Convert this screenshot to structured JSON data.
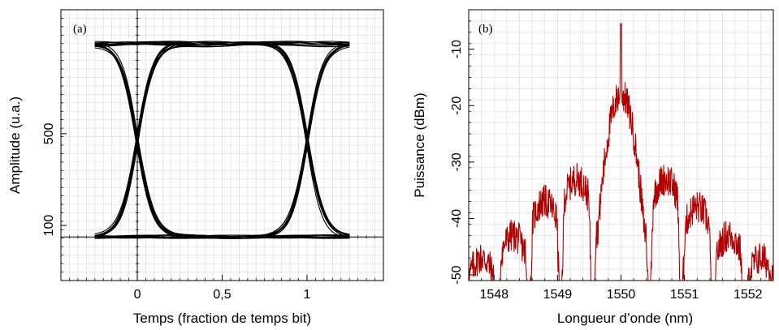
{
  "chart_data": [
    {
      "type": "line",
      "panel_label": "(a)",
      "xlabel": "Temps (fraction de temps bit)",
      "ylabel": "Amplitude (u.a.)",
      "x_ticks": [
        {
          "value": 0,
          "label": "0"
        },
        {
          "value": 0.5,
          "label": "0,5"
        },
        {
          "value": 1,
          "label": "1"
        }
      ],
      "y_ticks": [
        {
          "value": 100,
          "label": "100"
        },
        {
          "value": 500,
          "label": "500"
        }
      ],
      "xlim": [
        -0.45,
        1.45
      ],
      "ylim": [
        -140,
        1040
      ],
      "grid": true,
      "eye_diagram": {
        "high_level": 890,
        "low_level": 50,
        "crossing_points": [
          0,
          1
        ],
        "x_start": -0.25,
        "x_end": 1.25
      }
    },
    {
      "type": "line",
      "panel_label": "(b)",
      "xlabel": "Longueur d’onde  (nm)",
      "ylabel": "Puissance (dBm)",
      "x_ticks": [
        {
          "value": 1548,
          "label": "1548"
        },
        {
          "value": 1549,
          "label": "1549"
        },
        {
          "value": 1550,
          "label": "1550"
        },
        {
          "value": 1551,
          "label": "1551"
        },
        {
          "value": 1552,
          "label": "1552"
        }
      ],
      "y_ticks": [
        {
          "value": -10,
          "label": "-10"
        },
        {
          "value": -20,
          "label": "-20"
        },
        {
          "value": -30,
          "label": "-30"
        },
        {
          "value": -40,
          "label": "-40"
        },
        {
          "value": -50,
          "label": "-50"
        }
      ],
      "xlim": [
        1547.6,
        1552.4
      ],
      "ylim": [
        -51,
        -3
      ],
      "grid": true,
      "series": [
        {
          "color": "#b00000",
          "envelope": {
            "peak_x": 1550.0,
            "peak_y": -5.5,
            "main_lobe_y": -18,
            "sidelobes": [
              {
                "x": 1549.3,
                "y": -33
              },
              {
                "x": 1550.7,
                "y": -33
              },
              {
                "x": 1548.8,
                "y": -37
              },
              {
                "x": 1551.2,
                "y": -38
              },
              {
                "x": 1548.3,
                "y": -43
              },
              {
                "x": 1551.7,
                "y": -43
              },
              {
                "x": 1547.8,
                "y": -47
              },
              {
                "x": 1552.2,
                "y": -47
              }
            ],
            "nulls": [
              1549.55,
              1550.45,
              1549.05,
              1550.95,
              1548.55,
              1551.45,
              1548.05,
              1551.95
            ]
          }
        }
      ]
    }
  ]
}
